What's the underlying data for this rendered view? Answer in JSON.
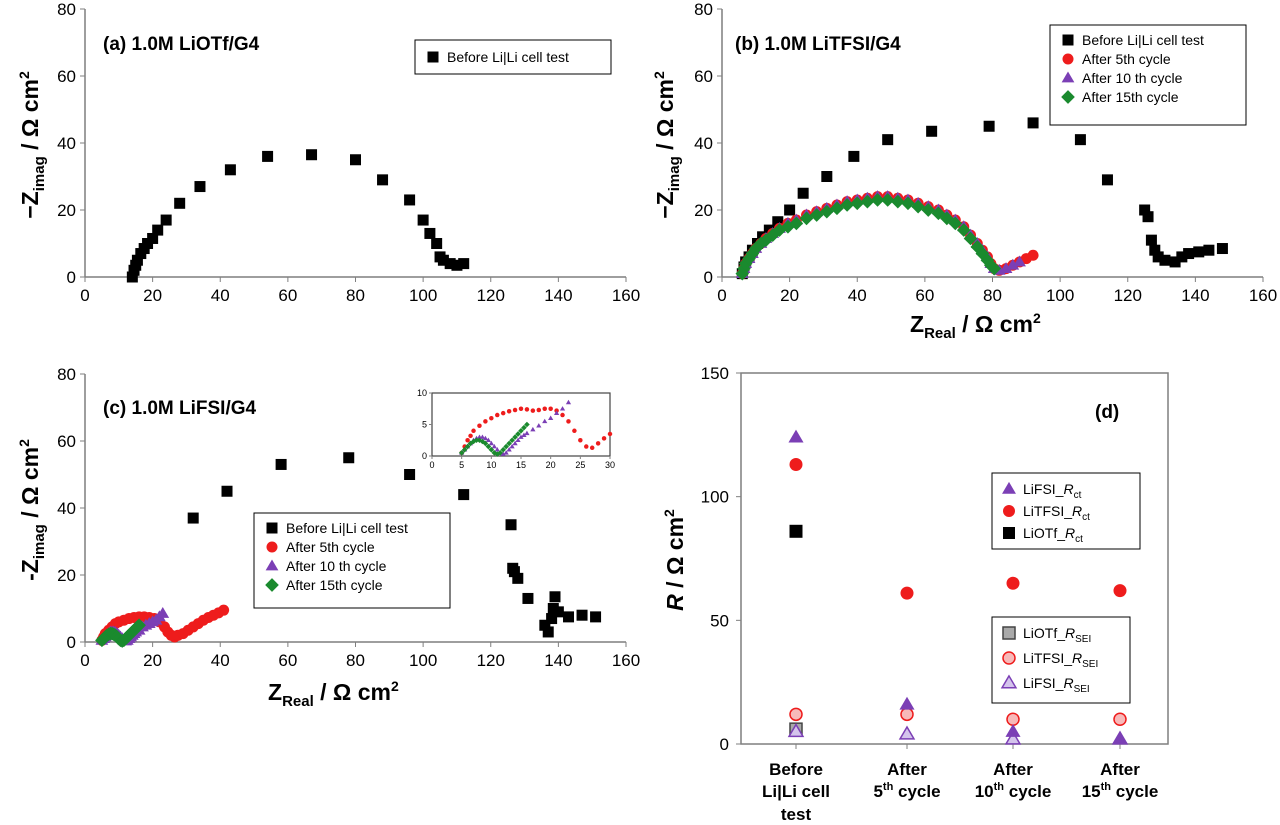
{
  "figure": {
    "colors": {
      "black": "#000000",
      "red": "#ee1c1c",
      "purple": "#7b3fb5",
      "green": "#1a8a2e",
      "gray": "#a9a9a9",
      "pink": "#f7b9b9",
      "lavender": "#d4c4ec"
    }
  },
  "chart_data": [
    {
      "panel": "a",
      "type": "scatter",
      "title": "(a) 1.0M LiOTf/G4",
      "xlabel": "",
      "ylabel": "−Zimag / Ω cm²",
      "ylabel_main": "−Z",
      "ylabel_sub": "imag",
      "ylabel_unit": " / Ω cm",
      "ylabel_sup": "2",
      "xlim": [
        0,
        160
      ],
      "ylim": [
        0,
        80
      ],
      "xticks": [
        0,
        20,
        40,
        60,
        80,
        100,
        120,
        140,
        160
      ],
      "yticks": [
        0,
        20,
        40,
        60,
        80
      ],
      "legend": "top-right",
      "series": [
        {
          "name": "Before Li|Li cell test",
          "marker": "square",
          "color": "#000000",
          "x": [
            14,
            14.5,
            15,
            15.5,
            16.5,
            17.5,
            18.5,
            20,
            21.5,
            24,
            28,
            34,
            43,
            54,
            67,
            80,
            88,
            96,
            100,
            102,
            104,
            105,
            106,
            108,
            110,
            112
          ],
          "y": [
            0,
            2,
            3.5,
            5,
            7,
            8.5,
            10,
            11.5,
            14,
            17,
            22,
            27,
            32,
            36,
            36.5,
            35,
            29,
            23,
            17,
            13,
            10,
            6,
            5,
            4,
            3.5,
            4
          ]
        }
      ]
    },
    {
      "panel": "b",
      "type": "scatter",
      "title": "(b) 1.0M LiTFSI/G4",
      "xlabel": "ZReal / Ω cm²",
      "xlabel_main": "Z",
      "xlabel_sub": "Real",
      "xlabel_unit": " / Ω cm",
      "xlabel_sup": "2",
      "ylabel": "−Zimag / Ω cm²",
      "ylabel_main": "−Z",
      "ylabel_sub": "imag",
      "ylabel_unit": " / Ω cm",
      "ylabel_sup": "2",
      "xlim": [
        0,
        160
      ],
      "ylim": [
        0,
        80
      ],
      "xticks": [
        0,
        20,
        40,
        60,
        80,
        100,
        120,
        140,
        160
      ],
      "yticks": [
        0,
        20,
        40,
        60,
        80
      ],
      "legend": "top-right",
      "series": [
        {
          "name": "Before Li|Li cell test",
          "marker": "square",
          "color": "#000000",
          "x": [
            6,
            6.5,
            7,
            8,
            9,
            10.5,
            12,
            14,
            16.5,
            20,
            24,
            31,
            39,
            49,
            62,
            79,
            92,
            106,
            114,
            125,
            126,
            127,
            128,
            129,
            131,
            134,
            136,
            138,
            141,
            144,
            148
          ],
          "y": [
            1,
            3,
            4.5,
            6,
            8,
            10,
            12,
            14,
            16.5,
            20,
            25,
            30,
            36,
            41,
            43.5,
            45,
            46,
            41,
            29,
            20,
            18,
            11,
            8,
            6,
            5,
            4.5,
            6,
            7,
            7.5,
            8,
            8.5
          ]
        },
        {
          "name": "After 5th cycle",
          "marker": "circle",
          "color": "#ee1c1c",
          "x": [
            6,
            6.5,
            7,
            8,
            9,
            10,
            11.5,
            13,
            15,
            17,
            19.5,
            22,
            25,
            28,
            31,
            34,
            37,
            40,
            43,
            46,
            49,
            52,
            55,
            58,
            61,
            64,
            66.5,
            69,
            71.5,
            73.5,
            75.5,
            77,
            78.5,
            79.5,
            80.5,
            82,
            84,
            86,
            88,
            90,
            92
          ],
          "y": [
            1,
            2.5,
            4,
            5.5,
            7,
            8.5,
            10,
            11.5,
            13,
            14.5,
            16,
            17,
            18.5,
            19.5,
            20.5,
            21.5,
            22.5,
            23,
            23.5,
            24,
            24,
            23.5,
            23,
            22,
            21,
            20,
            18.5,
            17,
            15,
            12.5,
            10,
            8,
            6,
            4,
            2.5,
            2,
            2.5,
            3.5,
            4.5,
            5.5,
            6.5
          ]
        },
        {
          "name": "After 10 th cycle",
          "marker": "triangle",
          "color": "#7b3fb5",
          "x": [
            6,
            6.5,
            7,
            8,
            9,
            10,
            11.5,
            13,
            15,
            17,
            19.5,
            22,
            25,
            28,
            31,
            34,
            37,
            40,
            43,
            46,
            49,
            52,
            55,
            58,
            61,
            64,
            66.5,
            69,
            71.5,
            73.5,
            75.5,
            77,
            78.5,
            79.5,
            80.5,
            82,
            84,
            86,
            88
          ],
          "y": [
            1,
            2.5,
            4,
            5.5,
            7,
            8.5,
            10,
            11.5,
            13,
            14.5,
            16,
            17,
            18.5,
            19.5,
            20.5,
            21.5,
            22.5,
            23,
            23.5,
            24,
            24,
            23.5,
            23,
            22,
            21,
            20,
            18.5,
            17,
            15,
            12.5,
            10,
            8,
            6,
            4,
            2.5,
            2,
            2.5,
            3.5,
            4.5
          ]
        },
        {
          "name": "After 15th cycle",
          "marker": "diamond",
          "color": "#1a8a2e",
          "x": [
            6,
            6.5,
            7,
            8,
            9,
            10,
            11.5,
            13,
            15,
            17,
            19.5,
            22,
            25,
            28,
            31,
            34,
            37,
            40,
            43,
            46,
            49,
            52,
            55,
            58,
            61,
            64,
            66.5,
            69,
            71.5,
            73.5,
            75.5,
            77,
            78.5,
            79.5,
            80.5
          ],
          "y": [
            1,
            2.5,
            4,
            5.5,
            7,
            8.5,
            10,
            11,
            12.5,
            14,
            15,
            16,
            17.5,
            18.5,
            19.5,
            20.5,
            21.5,
            22,
            22.5,
            23,
            23,
            22.5,
            22,
            21,
            20,
            19,
            17.5,
            16,
            14,
            11.5,
            9,
            7,
            5,
            3.5,
            2.5
          ]
        }
      ]
    },
    {
      "panel": "c",
      "type": "scatter",
      "title": "(c) 1.0M LiFSI/G4",
      "xlabel": "ZReal / Ω cm²",
      "xlabel_main": "Z",
      "xlabel_sub": "Real",
      "xlabel_unit": " / Ω cm",
      "xlabel_sup": "2",
      "ylabel": "−Zimag / Ω cm²",
      "ylabel_main": "-Z",
      "ylabel_sub": "imag",
      "ylabel_unit": " / Ω cm",
      "ylabel_sup": "2",
      "xlim": [
        0,
        160
      ],
      "ylim": [
        0,
        80
      ],
      "xticks": [
        0,
        20,
        40,
        60,
        80,
        100,
        120,
        140,
        160
      ],
      "yticks": [
        0,
        20,
        40,
        60,
        80
      ],
      "legend": "center",
      "series": [
        {
          "name": "Before Li|Li cell test",
          "marker": "square",
          "color": "#000000",
          "x": [
            32,
            42,
            58,
            78,
            96,
            112,
            126,
            126.5,
            127,
            128,
            131,
            136,
            137,
            138,
            138.5,
            139,
            140,
            143,
            147,
            151
          ],
          "y": [
            37,
            45,
            53,
            55,
            50,
            44,
            35,
            22,
            21,
            19,
            13,
            5,
            3,
            7,
            10,
            13.5,
            9,
            7.5,
            8,
            7.5
          ]
        },
        {
          "name": "After 5th cycle",
          "marker": "circle",
          "color": "#ee1c1c",
          "x": [
            5,
            5.5,
            6,
            7,
            8,
            9,
            10,
            11.5,
            13,
            14.5,
            16,
            17.5,
            19,
            20.5,
            22,
            23.5,
            24.5,
            25.5,
            26.5,
            27.5,
            29,
            30.5,
            32,
            33.5,
            35,
            36.5,
            38,
            39.5,
            41
          ],
          "y": [
            0.5,
            1.5,
            2.5,
            3.5,
            4.5,
            5.5,
            6,
            6.5,
            7,
            7.3,
            7.5,
            7.5,
            7.3,
            7,
            6,
            4.5,
            3,
            2,
            1.5,
            2,
            2.5,
            3.5,
            4.5,
            5.5,
            6.5,
            7.3,
            8,
            8.7,
            9.5
          ]
        },
        {
          "name": "After 10 th cycle",
          "marker": "triangle",
          "color": "#7b3fb5",
          "x": [
            5,
            5.5,
            6,
            6.5,
            7,
            7.5,
            8,
            8.5,
            9,
            9.5,
            10,
            10.5,
            11,
            11.5,
            12,
            12.5,
            13,
            13.5,
            14,
            14.5,
            15,
            16,
            17,
            18,
            19,
            20,
            21,
            22,
            23
          ],
          "y": [
            0.5,
            1,
            1.5,
            2,
            2.5,
            3,
            3,
            3,
            2.8,
            2.5,
            2,
            1.5,
            1,
            0.5,
            0.3,
            0.5,
            1,
            1.5,
            2,
            2.5,
            3,
            3.5,
            4.5,
            5,
            5.5,
            6,
            6.5,
            7.5,
            8.5
          ]
        },
        {
          "name": "After 15th cycle",
          "marker": "diamond",
          "color": "#1a8a2e",
          "x": [
            5,
            5.5,
            6,
            6.5,
            7,
            7.5,
            8,
            8.5,
            9,
            9.5,
            10,
            10.5,
            11,
            11.5,
            12,
            12.5,
            13,
            13.5,
            14,
            14.5,
            15,
            15.5,
            16
          ],
          "y": [
            0.5,
            1,
            1.5,
            2,
            2.3,
            2.5,
            2.5,
            2.3,
            2,
            1.5,
            1,
            0.5,
            0.3,
            0.5,
            1,
            1.5,
            2,
            2.5,
            3,
            3.5,
            4,
            4.5,
            5
          ]
        }
      ]
    },
    {
      "panel": "c-inset",
      "type": "scatter",
      "title": "",
      "xlim": [
        0,
        30
      ],
      "ylim": [
        0,
        10
      ],
      "xticks": [
        0,
        5,
        10,
        15,
        20,
        25,
        30
      ],
      "yticks": [
        0,
        5,
        10
      ],
      "series": [
        {
          "name": "After 5th cycle",
          "marker": "circle",
          "color": "#ee1c1c",
          "x": [
            5,
            5.5,
            6,
            6.5,
            7,
            8,
            9,
            10,
            11,
            12,
            13,
            14,
            15,
            16,
            17,
            18,
            19,
            20,
            21,
            22,
            23,
            24,
            25,
            26,
            27,
            28,
            29,
            30
          ],
          "y": [
            0.5,
            1.5,
            2.5,
            3.2,
            4,
            4.8,
            5.5,
            6,
            6.5,
            6.8,
            7.1,
            7.3,
            7.5,
            7.4,
            7.2,
            7.3,
            7.5,
            7.5,
            7.2,
            6.5,
            5.5,
            4,
            2.5,
            1.5,
            1.3,
            2,
            2.8,
            3.5
          ]
        },
        {
          "name": "After 10 th cycle",
          "marker": "triangle",
          "color": "#7b3fb5",
          "x": [
            5,
            5.5,
            6,
            6.5,
            7,
            7.5,
            8,
            8.5,
            9,
            9.5,
            10,
            10.5,
            11,
            11.5,
            12,
            12.5,
            13,
            13.5,
            14,
            14.5,
            15,
            15.5,
            16,
            17,
            18,
            19,
            20,
            21,
            22,
            23
          ],
          "y": [
            0.5,
            1,
            1.5,
            2,
            2.5,
            2.8,
            3,
            3,
            2.8,
            2.5,
            2,
            1.5,
            1,
            0.5,
            0.3,
            0.5,
            1,
            1.5,
            2,
            2.5,
            3,
            3.3,
            3.6,
            4.2,
            4.8,
            5.5,
            6,
            6.8,
            7.5,
            8.5
          ]
        },
        {
          "name": "After 15th cycle",
          "marker": "diamond",
          "color": "#1a8a2e",
          "x": [
            5,
            5.5,
            6,
            6.5,
            7,
            7.5,
            8,
            8.5,
            9,
            9.5,
            10,
            10.5,
            11,
            11.5,
            12,
            12.5,
            13,
            13.5,
            14,
            14.5,
            15,
            15.5,
            16
          ],
          "y": [
            0.5,
            1,
            1.5,
            2,
            2.3,
            2.5,
            2.5,
            2.3,
            2,
            1.5,
            1,
            0.5,
            0.3,
            0.5,
            1,
            1.5,
            2,
            2.5,
            3,
            3.5,
            4,
            4.5,
            5
          ]
        }
      ]
    },
    {
      "panel": "d",
      "type": "scatter",
      "title": "(d)",
      "xlabel": "",
      "ylabel": "R / Ω cm²",
      "ylabel_main": "R",
      "ylabel_unit": " / Ω cm",
      "ylabel_sup": "2",
      "ylim": [
        0,
        150
      ],
      "yticks": [
        0,
        50,
        100,
        150
      ],
      "categories": [
        {
          "main": "Before",
          "line2": "Li|Li cell",
          "line3": "test"
        },
        {
          "main": "After",
          "num": "5",
          "sup": "th",
          "word": " cycle"
        },
        {
          "main": "After",
          "num": "10",
          "sup": "th",
          "word": " cycle"
        },
        {
          "main": "After",
          "num": "15",
          "sup": "th",
          "word": " cycle"
        }
      ],
      "legend_rct": "right",
      "legend_rsei": "bottom-right",
      "series_rct": [
        {
          "name": "LiFSI_Rct",
          "base": "LiFSI_",
          "italic": "R",
          "sub": "ct",
          "marker": "triangle",
          "color": "#7b3fb5",
          "fill": "#7b3fb5",
          "values": [
            124,
            16,
            5,
            2
          ]
        },
        {
          "name": "LiTFSI_Rct",
          "base": "LiTFSI_",
          "italic": "R",
          "sub": "ct",
          "marker": "circle",
          "color": "#ee1c1c",
          "fill": "#ee1c1c",
          "values": [
            113,
            61,
            65,
            62
          ]
        },
        {
          "name": "LiOTf_Rct",
          "base": "LiOTf_",
          "italic": "R",
          "sub": "ct",
          "marker": "square",
          "color": "#000000",
          "fill": "#000000",
          "values": [
            86,
            null,
            null,
            null
          ]
        }
      ],
      "series_rsei": [
        {
          "name": "LiOTf_RSEI",
          "base": "LiOTf_",
          "italic": "R",
          "sub": "SEI",
          "marker": "square",
          "color": "#444444",
          "fill": "#a9a9a9",
          "values": [
            6,
            null,
            null,
            null
          ]
        },
        {
          "name": "LiTFSI_RSEI",
          "base": "LiTFSI_",
          "italic": "R",
          "sub": "SEI",
          "marker": "circle",
          "color": "#ee1c1c",
          "fill": "#f7b9b9",
          "values": [
            12,
            12,
            10,
            10
          ]
        },
        {
          "name": "LiFSI_RSEI",
          "base": "LiFSI_",
          "italic": "R",
          "sub": "SEI",
          "marker": "triangle",
          "color": "#7b3fb5",
          "fill": "#d4c4ec",
          "values": [
            5,
            4,
            2,
            2
          ]
        }
      ]
    }
  ]
}
